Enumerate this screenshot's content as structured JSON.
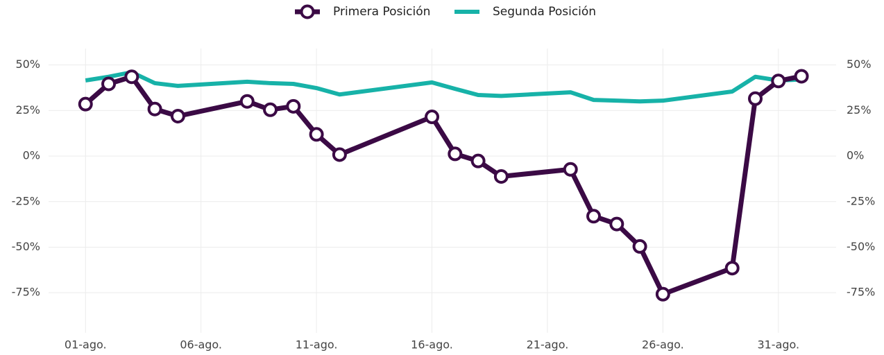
{
  "chart_data": {
    "type": "line",
    "x": [
      1,
      2,
      3,
      4,
      5,
      8,
      9,
      10,
      11,
      12,
      16,
      17,
      18,
      19,
      22,
      23,
      24,
      25,
      26,
      29,
      30,
      31,
      32
    ],
    "series": [
      {
        "name": "Primera Posición",
        "color": "#3b0a45",
        "values": [
          28.5,
          39.6,
          43.5,
          25.8,
          21.9,
          30,
          25.4,
          27.3,
          11.9,
          0.8,
          21.5,
          1.2,
          -2.7,
          -11.2,
          -7.3,
          -33,
          -37.3,
          -49.6,
          -75.8,
          -61.5,
          31.5,
          41.2,
          43.8
        ]
      },
      {
        "name": "Segunda Posición",
        "color": "#17b2a8",
        "values": [
          41.5,
          43.5,
          46,
          40,
          38.5,
          40.8,
          40,
          39.6,
          37.3,
          33.8,
          40.4,
          36.9,
          33.5,
          33,
          35,
          30.8,
          30.4,
          30,
          30.4,
          35.4,
          43.5,
          41.5,
          42
        ]
      }
    ],
    "xlim": [
      -0.6,
      33.5
    ],
    "xticks": [
      {
        "value": 1,
        "label": "01-ago."
      },
      {
        "value": 6,
        "label": "06-ago."
      },
      {
        "value": 11,
        "label": "11-ago."
      },
      {
        "value": 16,
        "label": "16-ago."
      },
      {
        "value": 21,
        "label": "21-ago."
      },
      {
        "value": 26,
        "label": "26-ago."
      },
      {
        "value": 31,
        "label": "31-ago."
      }
    ],
    "ylim": [
      -97,
      59
    ],
    "yticks": [
      {
        "value": -75,
        "label": "-75%"
      },
      {
        "value": -50,
        "label": "-50%"
      },
      {
        "value": -25,
        "label": "-25%"
      },
      {
        "value": 0,
        "label": "0%"
      },
      {
        "value": 25,
        "label": "25%"
      },
      {
        "value": 50,
        "label": "50%"
      }
    ],
    "grid": true,
    "legend": "top"
  }
}
